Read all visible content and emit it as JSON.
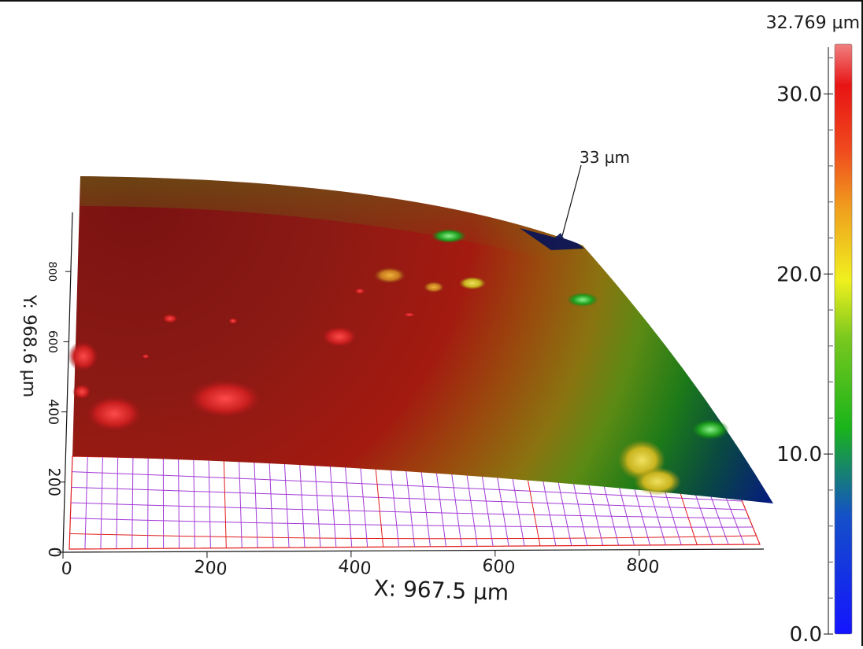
{
  "chart_data": {
    "type": "surface",
    "x_axis": {
      "label": "X: 967.5 µm",
      "ticks": [
        0,
        200,
        400,
        600,
        800
      ],
      "tick_labels": [
        "0",
        "200",
        "400",
        "600",
        "800"
      ],
      "range": [
        0,
        967.5
      ]
    },
    "y_axis": {
      "label": "Y: 968.6 µm",
      "ticks": [
        0,
        200,
        400,
        600,
        800
      ],
      "tick_labels": [
        "0",
        "200",
        "400",
        "600",
        "800"
      ],
      "range": [
        0,
        968.6
      ]
    },
    "colorbar": {
      "max_label": "32.769 µm",
      "ticks": [
        0.0,
        10.0,
        20.0,
        30.0
      ],
      "tick_labels": [
        "0.0",
        "10.0",
        "20.0",
        "30.0"
      ],
      "range": [
        0,
        32.769
      ],
      "colors": [
        "#0000ff",
        "#00a0a0",
        "#00c800",
        "#ffff00",
        "#ff8000",
        "#ff0000",
        "#ff8080"
      ]
    },
    "annotation": {
      "text": "33 µm"
    }
  }
}
